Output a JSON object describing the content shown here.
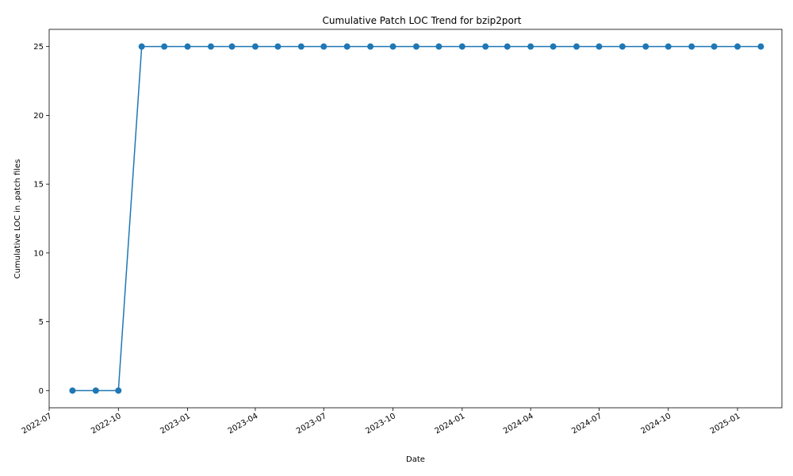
{
  "chart_data": {
    "type": "line",
    "title": "Cumulative Patch LOC Trend for bzip2port",
    "xlabel": "Date",
    "ylabel": "Cumulative LOC in .patch files",
    "x": [
      "2022-08-01",
      "2022-09-01",
      "2022-10-01",
      "2022-11-01",
      "2022-12-01",
      "2023-01-01",
      "2023-02-01",
      "2023-03-01",
      "2023-04-01",
      "2023-05-01",
      "2023-06-01",
      "2023-07-01",
      "2023-08-01",
      "2023-09-01",
      "2023-10-01",
      "2023-11-01",
      "2023-12-01",
      "2024-01-01",
      "2024-02-01",
      "2024-03-01",
      "2024-04-01",
      "2024-05-01",
      "2024-06-01",
      "2024-07-01",
      "2024-08-01",
      "2024-09-01",
      "2024-10-01",
      "2024-11-01",
      "2024-12-01",
      "2025-01-01",
      "2025-02-01"
    ],
    "series": [
      {
        "values": [
          0,
          0,
          0,
          25,
          25,
          25,
          25,
          25,
          25,
          25,
          25,
          25,
          25,
          25,
          25,
          25,
          25,
          25,
          25,
          25,
          25,
          25,
          25,
          25,
          25,
          25,
          25,
          25,
          25,
          25,
          25
        ],
        "color": "#1f77b4"
      }
    ],
    "xlim": [
      "2022-07-01",
      "2025-03-01"
    ],
    "ylim": [
      -1.25,
      26.25
    ],
    "x_ticks": [
      "2022-07",
      "2022-10",
      "2023-01",
      "2023-04",
      "2023-07",
      "2023-10",
      "2024-01",
      "2024-04",
      "2024-07",
      "2024-10",
      "2025-01"
    ],
    "y_ticks": [
      0,
      5,
      10,
      15,
      20,
      25
    ],
    "grid": false,
    "marker": "circle",
    "xtick_rotation": 30
  }
}
